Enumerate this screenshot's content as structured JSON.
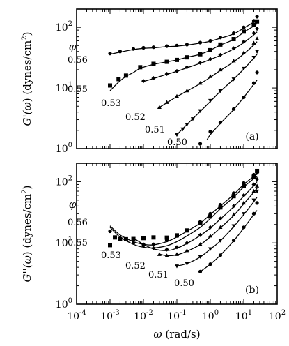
{
  "chart_data": [
    {
      "panel": "top",
      "type": "scatter",
      "panel_tag": "(a)",
      "ylabel_parts": [
        "G'(",
        "ω",
        ")  (dynes/cm",
        "2",
        ")"
      ],
      "xlim": [
        0.0001,
        100
      ],
      "ylim": [
        1,
        200
      ],
      "xscale": "log",
      "yscale": "log",
      "y_tick_labels": [
        {
          "base": "10",
          "exp": "0",
          "value": 1
        },
        {
          "base": "10",
          "exp": "1",
          "value": 10
        },
        {
          "base": "10",
          "exp": "2",
          "value": 100
        }
      ],
      "legend_symbol": "φ",
      "series": [
        {
          "name": "0.56",
          "marker": "circle",
          "x": [
            0.001,
            0.002,
            0.005,
            0.01,
            0.02,
            0.05,
            0.1,
            0.2,
            0.5,
            1,
            2,
            5,
            10,
            20,
            25
          ],
          "y": [
            37,
            40,
            44,
            46,
            47,
            49,
            50,
            52,
            56,
            60,
            68,
            80,
            100,
            128,
            150
          ],
          "fit": {
            "x": [
              0.001,
              0.002,
              0.005,
              0.01,
              0.02,
              0.05,
              0.1,
              0.2,
              0.5,
              1,
              2,
              5,
              10,
              20,
              25
            ],
            "y": [
              36,
              39,
              43,
              45,
              46,
              48,
              49,
              51,
              55,
              59,
              66,
              78,
              97,
              122,
              132
            ]
          }
        },
        {
          "name": "0.55",
          "marker": "square",
          "x": [
            0.001,
            0.0018,
            0.003,
            0.008,
            0.02,
            0.05,
            0.1,
            0.2,
            0.5,
            1,
            2,
            5,
            10,
            20,
            25
          ],
          "y": [
            11,
            14,
            16,
            22,
            25,
            27,
            29,
            32,
            36,
            42,
            52,
            64,
            85,
            110,
            125
          ],
          "fit": {
            "x": [
              0.001,
              0.0018,
              0.003,
              0.005,
              0.008,
              0.02,
              0.05,
              0.1,
              0.2,
              0.5,
              1,
              2,
              5,
              10,
              20,
              25
            ],
            "y": [
              9,
              12.5,
              15.5,
              18,
              21,
              24.5,
              27,
              29,
              32,
              36,
              42,
              51,
              63,
              83,
              105,
              115
            ]
          }
        },
        {
          "name": "0.53",
          "marker": "diamond",
          "x": [
            0.01,
            0.02,
            0.05,
            0.1,
            0.2,
            0.5,
            1,
            2,
            5,
            10,
            20,
            25
          ],
          "y": [
            13,
            14.5,
            17,
            19,
            22,
            26,
            30,
            35,
            45,
            58,
            80,
            95
          ],
          "fit": {
            "x": [
              0.01,
              0.02,
              0.05,
              0.1,
              0.2,
              0.5,
              1,
              2,
              5,
              10,
              20,
              25
            ],
            "y": [
              12.8,
              14.3,
              16.8,
              18.8,
              21.5,
              25.5,
              29.5,
              34.5,
              44,
              56,
              75,
              84
            ]
          }
        },
        {
          "name": "0.52",
          "marker": "triangle-up",
          "x": [
            0.03,
            0.05,
            0.1,
            0.2,
            0.5,
            1,
            2,
            5,
            10,
            20,
            25
          ],
          "y": [
            4.8,
            5.8,
            7.3,
            9,
            12,
            15.5,
            20,
            28,
            38,
            55,
            65
          ],
          "fit": {
            "x": [
              0.03,
              0.05,
              0.1,
              0.2,
              0.5,
              1,
              2,
              5,
              10,
              20,
              25
            ],
            "y": [
              4.8,
              5.7,
              7.2,
              8.9,
              11.8,
              15,
              19.5,
              27,
              36.5,
              51,
              58
            ]
          }
        },
        {
          "name": "0.51",
          "marker": "triangle-down",
          "x": [
            0.1,
            0.15,
            0.2,
            0.3,
            0.5,
            1,
            2,
            5,
            10,
            20,
            25
          ],
          "y": [
            1.7,
            2.1,
            2.5,
            3.1,
            4.2,
            6.2,
            9,
            14,
            21,
            32,
            40
          ],
          "fit": {
            "x": [
              0.1,
              0.2,
              0.5,
              1,
              2,
              5,
              10,
              20,
              25
            ],
            "y": [
              1.7,
              2.5,
              4.1,
              6,
              8.8,
              14,
              20.5,
              31,
              36
            ]
          }
        },
        {
          "name": "0.50",
          "marker": "circle",
          "x": [
            0.5,
            1,
            2,
            5,
            10,
            20,
            25
          ],
          "y": [
            1.2,
            1.9,
            2.7,
            4.5,
            7,
            12,
            18
          ],
          "fit": {
            "x": [
              0.8,
              1,
              2,
              5,
              10,
              20,
              25
            ],
            "y": [
              1.4,
              1.7,
              2.6,
              4.4,
              7,
              11.5,
              13.5
            ]
          }
        }
      ]
    },
    {
      "panel": "bottom",
      "type": "scatter",
      "panel_tag": "(b)",
      "xlabel_parts": [
        "ω",
        "  (rad/s)"
      ],
      "ylabel_parts": [
        "G''(",
        "ω",
        ")  (dynes/cm",
        "2",
        ")"
      ],
      "xlim": [
        0.0001,
        100
      ],
      "ylim": [
        1,
        200
      ],
      "xscale": "log",
      "yscale": "log",
      "x_tick_labels": [
        {
          "base": "10",
          "exp": "-4",
          "value": 0.0001
        },
        {
          "base": "10",
          "exp": "-3",
          "value": 0.001
        },
        {
          "base": "10",
          "exp": "-2",
          "value": 0.01
        },
        {
          "base": "10",
          "exp": "-1",
          "value": 0.1
        },
        {
          "base": "10",
          "exp": "0",
          "value": 1
        },
        {
          "base": "10",
          "exp": "1",
          "value": 10
        },
        {
          "base": "10",
          "exp": "2",
          "value": 100
        }
      ],
      "y_tick_labels": [
        {
          "base": "10",
          "exp": "0",
          "value": 1
        },
        {
          "base": "10",
          "exp": "1",
          "value": 10
        },
        {
          "base": "10",
          "exp": "2",
          "value": 100
        }
      ],
      "legend_symbol": "φ",
      "series": [
        {
          "name": "0.56",
          "marker": "circle",
          "x": [
            0.001,
            0.002,
            0.005,
            0.01,
            0.02,
            0.05,
            0.1,
            0.2,
            0.5,
            1,
            2,
            5,
            10,
            20,
            25
          ],
          "y": [
            15.5,
            12,
            10,
            9.5,
            9.5,
            11,
            13,
            16,
            22,
            30,
            42,
            65,
            95,
            130,
            140
          ],
          "fit": {
            "x": [
              0.001,
              0.002,
              0.005,
              0.01,
              0.02,
              0.05,
              0.1,
              0.2,
              0.5,
              1,
              2,
              5,
              10,
              20,
              25
            ],
            "y": [
              19,
              13.5,
              10.5,
              9.5,
              9.3,
              10.5,
              12.5,
              15.5,
              21,
              29,
              40,
              62,
              90,
              122,
              132
            ]
          }
        },
        {
          "name": "0.55",
          "marker": "square",
          "x": [
            0.001,
            0.0014,
            0.002,
            0.003,
            0.005,
            0.01,
            0.02,
            0.05,
            0.1,
            0.2,
            0.5,
            1,
            2,
            5,
            10,
            20,
            25
          ],
          "y": [
            9.2,
            12.3,
            11.5,
            11.5,
            11.6,
            12,
            12.3,
            12.2,
            13.3,
            16,
            21,
            27,
            38,
            58,
            85,
            120,
            150
          ],
          "fit": {
            "x": [
              0.001,
              0.002,
              0.005,
              0.01,
              0.02,
              0.05,
              0.1,
              0.2,
              0.5,
              1,
              2,
              5,
              10,
              20,
              25
            ],
            "y": [
              18,
              12.5,
              9.5,
              8.5,
              8.3,
              9,
              10.5,
              13,
              18,
              25,
              36,
              56,
              82,
              112,
              122
            ]
          }
        },
        {
          "name": "0.53",
          "marker": "diamond",
          "x": [
            0.01,
            0.02,
            0.05,
            0.1,
            0.2,
            0.5,
            1,
            2,
            5,
            10,
            20,
            25
          ],
          "y": [
            9,
            8.2,
            7.8,
            8.5,
            10,
            13.5,
            18,
            25,
            40,
            60,
            90,
            110
          ],
          "fit": {
            "x": [
              0.005,
              0.01,
              0.02,
              0.05,
              0.1,
              0.2,
              0.5,
              1,
              2,
              5,
              10,
              20,
              25
            ],
            "y": [
              12,
              9.5,
              8,
              7.5,
              8.2,
              9.8,
              13.2,
              17.5,
              24.5,
              39,
              58,
              86,
              100
            ]
          }
        },
        {
          "name": "0.52",
          "marker": "triangle-up",
          "x": [
            0.03,
            0.05,
            0.1,
            0.2,
            0.5,
            1,
            2,
            5,
            10,
            20,
            25
          ],
          "y": [
            6.5,
            6.2,
            6.5,
            7.5,
            9.5,
            13,
            18,
            29,
            45,
            70,
            85
          ],
          "fit": {
            "x": [
              0.03,
              0.05,
              0.1,
              0.2,
              0.5,
              1,
              2,
              5,
              10,
              20,
              25
            ],
            "y": [
              6.6,
              6.2,
              6.4,
              7.3,
              9.4,
              12.6,
              17.6,
              28,
              43.5,
              67,
              78
            ]
          }
        },
        {
          "name": "0.51",
          "marker": "triangle-down",
          "x": [
            0.1,
            0.2,
            0.5,
            1,
            2,
            5,
            10,
            20,
            25
          ],
          "y": [
            4.2,
            4.6,
            6,
            8,
            11,
            19,
            30,
            50,
            70
          ],
          "fit": {
            "x": [
              0.1,
              0.2,
              0.5,
              1,
              2,
              5,
              10,
              20,
              25
            ],
            "y": [
              4.2,
              4.6,
              5.9,
              7.9,
              10.8,
              18.5,
              29,
              47,
              56
            ]
          }
        },
        {
          "name": "0.50",
          "marker": "circle",
          "x": [
            0.5,
            1,
            2,
            5,
            10,
            20,
            25
          ],
          "y": [
            3.4,
            4.5,
            6.3,
            11,
            18,
            30,
            45
          ],
          "fit": {
            "x": [
              0.5,
              1,
              2,
              5,
              10,
              20,
              25
            ],
            "y": [
              3.4,
              4.5,
              6.3,
              10.8,
              17.5,
              29,
              34
            ]
          }
        }
      ]
    }
  ]
}
